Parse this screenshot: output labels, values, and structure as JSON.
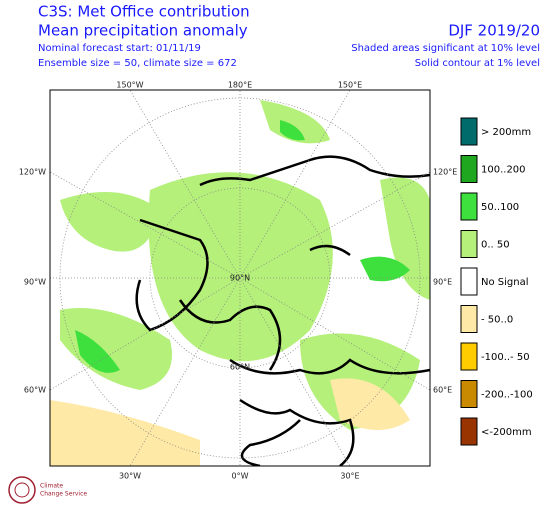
{
  "header": {
    "title": "C3S: Met Office contribution",
    "subtitle": "Mean precipitation anomaly",
    "forecast_start": "Nominal forecast start: 01/11/19",
    "ensemble": "Ensemble size = 50, climate size = 672",
    "season": "DJF 2019/20",
    "note_shaded": "Shaded areas significant at 10% level",
    "note_contour": "Solid contour at 1% level"
  },
  "map": {
    "top_labels": [
      "150°W",
      "180°E",
      "150°E"
    ],
    "left_labels": [
      "120°W",
      "90°W",
      "60°W"
    ],
    "right_labels": [
      "120°E",
      "90°E",
      "60°E"
    ],
    "bottom_labels": [
      "30°W",
      "0°W",
      "30°E"
    ],
    "inner_labels": [
      "90°N",
      "60°N"
    ]
  },
  "legend": [
    {
      "label": "> 200mm",
      "color": "#006b6b"
    },
    {
      "label": "100..200",
      "color": "#1fa81f"
    },
    {
      "label": "50..100",
      "color": "#3ee03e"
    },
    {
      "label": "0.. 50",
      "color": "#b4f07a"
    },
    {
      "label": "No Signal",
      "color": "#ffffff"
    },
    {
      "label": "- 50..0",
      "color": "#ffe9a6"
    },
    {
      "label": "-100..- 50",
      "color": "#ffcc00"
    },
    {
      "label": "-200..-100",
      "color": "#c98a00"
    },
    {
      "label": "<-200mm",
      "color": "#993300"
    }
  ],
  "logo": {
    "line1": "Climate",
    "line2": "Change Service"
  }
}
